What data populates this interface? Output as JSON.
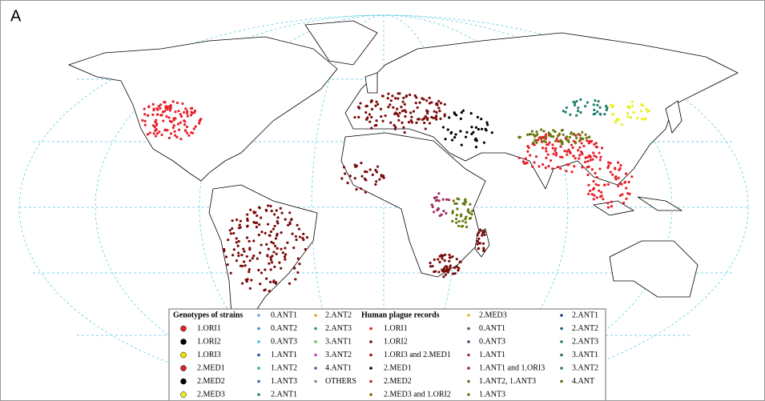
{
  "panel_label": "A",
  "legend": {
    "strains": {
      "title": "Genotypes of strains",
      "columns": [
        [
          {
            "label": "1.ORI1",
            "color": "#e8202a"
          },
          {
            "label": "1.ORI2",
            "color": "#000000"
          },
          {
            "label": "1.ORI3",
            "color": "#f2e300"
          },
          {
            "label": "2.MED1",
            "color": "#d6202a"
          },
          {
            "label": "2.MED2",
            "color": "#000000"
          },
          {
            "label": "2.MED3",
            "color": "#e8f020"
          }
        ],
        [
          {
            "label": "0.ANT1",
            "color": "#6fa0d0"
          },
          {
            "label": "0.ANT2",
            "color": "#3a8fd8"
          },
          {
            "label": "0.ANT3",
            "color": "#40c0e0"
          },
          {
            "label": "1.ANT1",
            "color": "#2050a0"
          },
          {
            "label": "1.ANT2",
            "color": "#30a0a0"
          },
          {
            "label": "1.ANT3",
            "color": "#4060b0"
          },
          {
            "label": "2.ANT1",
            "color": "#208080"
          }
        ],
        [
          {
            "label": "2.ANT2",
            "color": "#e8a020"
          },
          {
            "label": "2.ANT3",
            "color": "#20a060"
          },
          {
            "label": "3.ANT1",
            "color": "#60c060"
          },
          {
            "label": "3.ANT2",
            "color": "#c040c0"
          },
          {
            "label": "4.ANT1",
            "color": "#8040a0"
          },
          {
            "label": "OTHERS",
            "color": "#888888"
          }
        ]
      ]
    },
    "records": {
      "title": "Human plague records",
      "columns": [
        [
          {
            "label": "1.ORI1",
            "color": "#e8202a"
          },
          {
            "label": "1.ORI2",
            "color": "#7a0a0a"
          },
          {
            "label": "1.ORI3 and 2.MED1",
            "color": "#a01010"
          },
          {
            "label": "2.MED1",
            "color": "#000000"
          },
          {
            "label": "2.MED2",
            "color": "#b03030"
          },
          {
            "label": "2.MED3 and 1.ORI2",
            "color": "#806000"
          }
        ],
        [
          {
            "label": "2.MED3",
            "color": "#e0c020"
          },
          {
            "label": "0.ANT1",
            "color": "#406080"
          },
          {
            "label": "0.ANT3",
            "color": "#305070"
          },
          {
            "label": "1.ANT1",
            "color": "#a03060"
          },
          {
            "label": "1.ANT1 and 1.ORI3",
            "color": "#902050"
          },
          {
            "label": "1.ANT2, 1.ANT3",
            "color": "#607020"
          },
          {
            "label": "1.ANT3",
            "color": "#6a7a10"
          }
        ],
        [
          {
            "label": "2.ANT1",
            "color": "#204080"
          },
          {
            "label": "2.ANT2",
            "color": "#206080"
          },
          {
            "label": "2.ANT3",
            "color": "#208070"
          },
          {
            "label": "3.ANT1",
            "color": "#2a7050"
          },
          {
            "label": "3.ANT2",
            "color": "#307a60"
          },
          {
            "label": "4.ANT",
            "color": "#6a7010"
          }
        ]
      ]
    }
  }
}
